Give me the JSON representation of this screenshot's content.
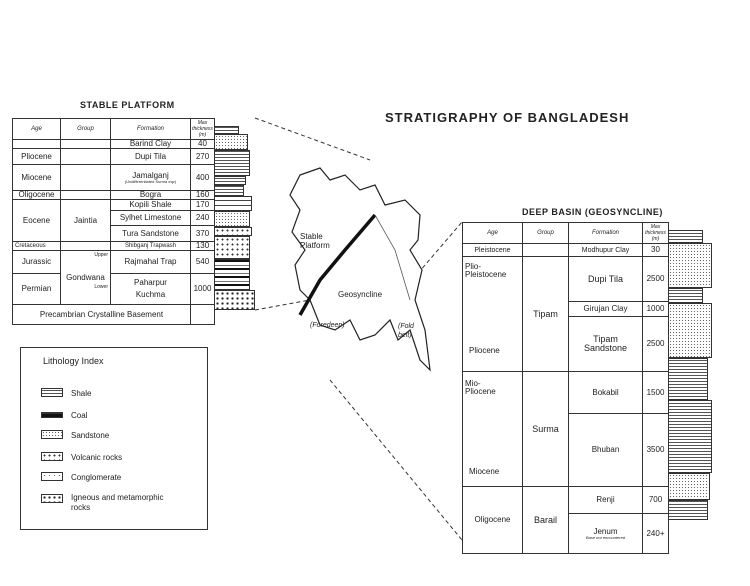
{
  "title": "STRATIGRAPHY OF BANGLADESH",
  "stable": {
    "title": "STABLE PLATFORM",
    "headers": [
      "Age",
      "Group",
      "Formation",
      "Max thickness (m)"
    ],
    "rows": [
      {
        "age": "",
        "formation": "Barind Clay",
        "thick": "40"
      },
      {
        "age": "Pliocene",
        "formation": "Dupi Tila",
        "thick": "270"
      },
      {
        "age": "Miocene",
        "formation": "Jamalganj",
        "note": "(Undifferentiated Surma eqv)",
        "thick": "400"
      },
      {
        "age": "Oligocene",
        "formation": "Bogra",
        "thick": "160"
      },
      {
        "age": "Eocene",
        "group": "Jaintia",
        "formation": "Kopili Shale",
        "thick": "170"
      },
      {
        "formation": "Sylhet Limestone",
        "thick": "240"
      },
      {
        "formation": "Tura Sandstone",
        "thick": "370"
      },
      {
        "age": "Cretaceous",
        "formation": "Shibganj Trapwash",
        "thick": "130"
      },
      {
        "age": "Jurassic",
        "group": "Gondwana",
        "sub": "Upper",
        "formation": "Rajmahal Trap",
        "thick": "540"
      },
      {
        "age": "Permian",
        "sub": "Lower",
        "formation": "Paharpur",
        "formation2": "Kuchma",
        "thick": "1000"
      }
    ],
    "basement": "Precambrian Crystalline Basement"
  },
  "deep": {
    "title": "DEEP BASIN (GEOSYNCLINE)",
    "headers": [
      "Age",
      "Group",
      "Formation",
      "Max thickness (m)"
    ],
    "ages": [
      "Pleistocene",
      "Plio-Pleistocene",
      "Pliocene",
      "Mio-Pliocene",
      "Miocene",
      "Oligocene"
    ],
    "groups": [
      "Tipam",
      "Surma",
      "Barail"
    ],
    "rows": [
      {
        "formation": "Modhupur Clay",
        "thick": "30"
      },
      {
        "formation": "Dupi Tila",
        "thick": "2500"
      },
      {
        "formation": "Girujan Clay",
        "thick": "1000"
      },
      {
        "formation": "Tipam Sandstone",
        "thick": "2500"
      },
      {
        "formation": "Bokabil",
        "thick": "1500"
      },
      {
        "formation": "Bhuban",
        "thick": "3500"
      },
      {
        "formation": "Renji",
        "thick": "700"
      },
      {
        "formation": "Jenum",
        "thick": "240+"
      }
    ],
    "base_note": "Base not encountered"
  },
  "map": {
    "labels": [
      "Stable Platform",
      "Geosyncline",
      "(Foredeep)",
      "(Fold belt)"
    ]
  },
  "legend": {
    "title": "Lithology Index",
    "items": [
      {
        "label": "Shale",
        "icon": "shale-pattern"
      },
      {
        "label": "Coal",
        "icon": "coal-pattern"
      },
      {
        "label": "Sandstone",
        "icon": "sandstone-pattern"
      },
      {
        "label": "Volcanic rocks",
        "icon": "volcanic-pattern"
      },
      {
        "label": "Conglomerate",
        "icon": "conglomerate-pattern"
      },
      {
        "label": "Igneous and metamorphic rocks",
        "icon": "igneous-pattern"
      }
    ]
  }
}
